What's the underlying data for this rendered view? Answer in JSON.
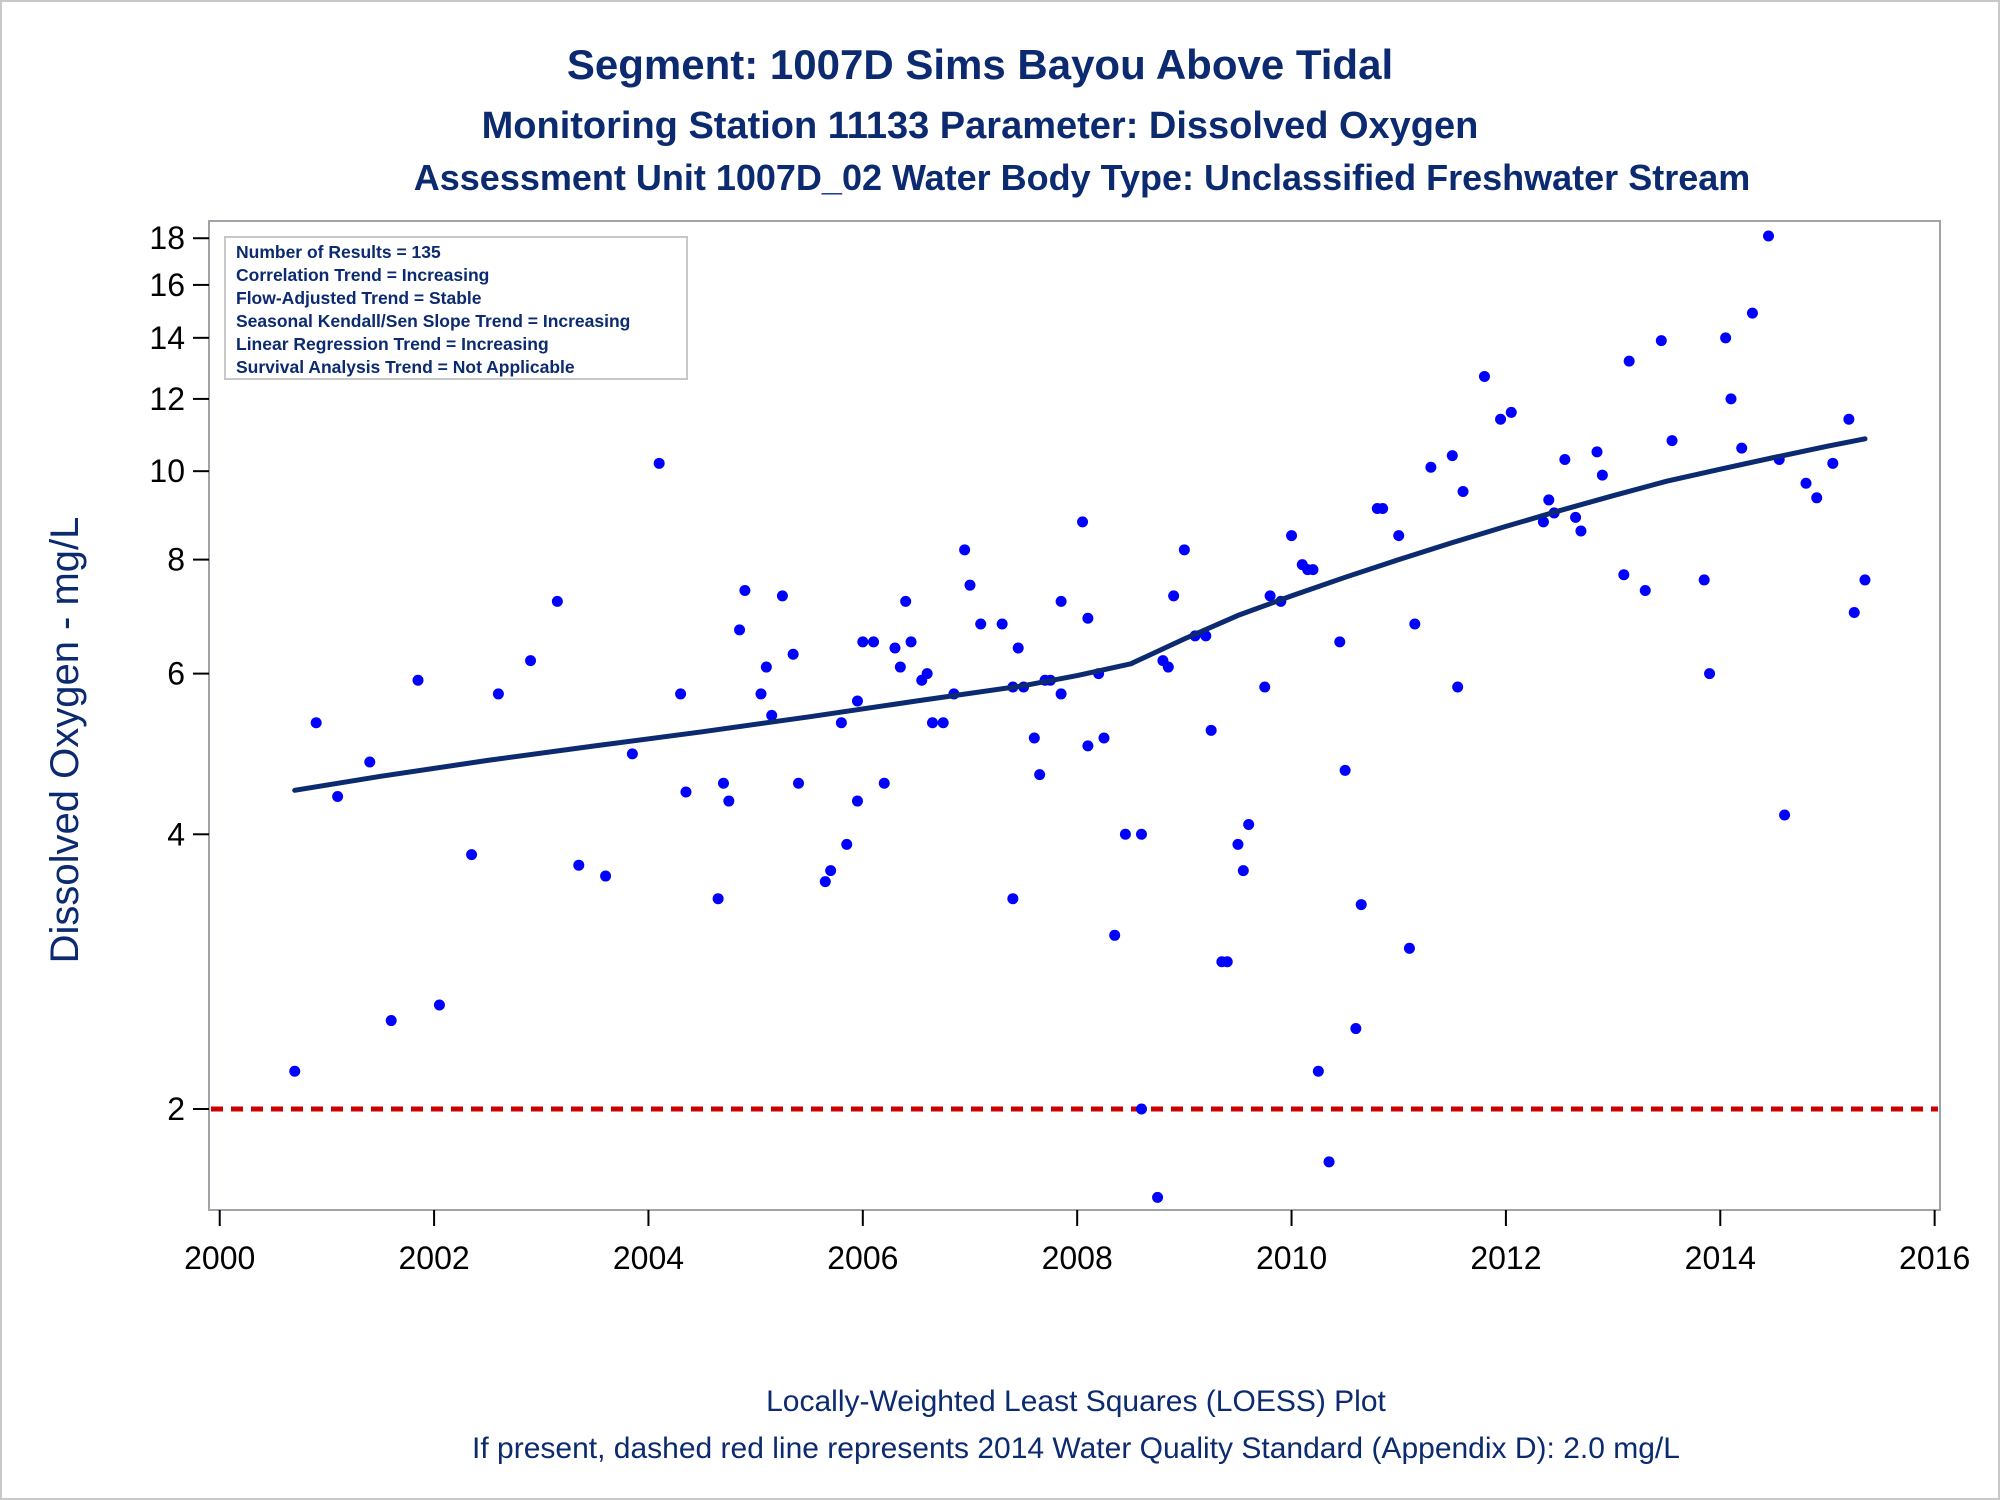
{
  "titles": {
    "line1": "Segment: 1007D  Sims Bayou Above Tidal",
    "line2": "Monitoring Station 11133 Parameter: Dissolved Oxygen",
    "line3": "Assessment Unit 1007D_02   Water Body Type: Unclassified Freshwater Stream"
  },
  "stats_box": [
    "Number of Results = 135",
    "Correlation Trend = Increasing",
    "Flow-Adjusted Trend = Stable",
    "Seasonal Kendall/Sen Slope Trend = Increasing",
    "Linear Regression Trend = Increasing",
    "Survival Analysis Trend = Not Applicable"
  ],
  "footer": {
    "line1": "Locally-Weighted Least Squares (LOESS) Plot",
    "line2": "If present, dashed red line represents 2014 Water Quality Standard (Appendix D): 2.0 mg/L"
  },
  "chart_data": {
    "type": "scatter",
    "xlabel": "",
    "ylabel": "Dissolved Oxygen - mg/L",
    "yscale": "log",
    "xlim": [
      1999.9,
      2016.05
    ],
    "ylim": [
      1.55,
      18.8
    ],
    "xticks": [
      2000,
      2002,
      2004,
      2006,
      2008,
      2010,
      2012,
      2014,
      2016
    ],
    "yticks": [
      2,
      4,
      6,
      8,
      10,
      12,
      14,
      16,
      18
    ],
    "grid": false,
    "colors": {
      "points": "#0000ff",
      "loess": "#0b2a70",
      "standard": "#cc0000",
      "text": "#0b2a70"
    },
    "standard_line": {
      "y": 2.0,
      "style": "dashed"
    },
    "series": [
      {
        "type": "scatter",
        "x": [
          2000.7,
          2000.9,
          2001.1,
          2001.4,
          2001.6,
          2001.85,
          2002.05,
          2002.35,
          2002.6,
          2002.9,
          2003.15,
          2003.35,
          2003.6,
          2003.85,
          2004.1,
          2004.3,
          2004.35,
          2004.65,
          2004.7,
          2004.75,
          2004.85,
          2004.9,
          2005.05,
          2005.1,
          2005.15,
          2005.25,
          2005.35,
          2005.4,
          2005.65,
          2005.7,
          2005.8,
          2005.85,
          2005.95,
          2005.95,
          2006.0,
          2006.1,
          2006.2,
          2006.3,
          2006.35,
          2006.4,
          2006.45,
          2006.55,
          2006.6,
          2006.65,
          2006.75,
          2006.85,
          2006.95,
          2007.0,
          2007.1,
          2007.3,
          2007.4,
          2007.4,
          2007.45,
          2007.5,
          2007.6,
          2007.65,
          2007.7,
          2007.75,
          2007.85,
          2007.85,
          2008.05,
          2008.1,
          2008.1,
          2008.2,
          2008.25,
          2008.35,
          2008.45,
          2008.6,
          2008.6,
          2008.75,
          2008.8,
          2008.85,
          2008.9,
          2009.0,
          2009.1,
          2009.2,
          2009.25,
          2009.35,
          2009.4,
          2009.5,
          2009.55,
          2009.6,
          2009.75,
          2009.8,
          2009.9,
          2010.0,
          2010.1,
          2010.15,
          2010.2,
          2010.25,
          2010.35,
          2010.45,
          2010.5,
          2010.6,
          2010.65,
          2010.8,
          2010.85,
          2011.0,
          2011.1,
          2011.15,
          2011.3,
          2011.5,
          2011.55,
          2011.6,
          2011.8,
          2011.95,
          2012.05,
          2012.35,
          2012.4,
          2012.45,
          2012.55,
          2012.65,
          2012.7,
          2012.85,
          2012.9,
          2013.1,
          2013.15,
          2013.3,
          2013.45,
          2013.55,
          2013.85,
          2013.9,
          2014.05,
          2014.1,
          2014.2,
          2014.3,
          2014.45,
          2014.55,
          2014.6,
          2014.8,
          2014.9,
          2015.05,
          2015.2,
          2015.25,
          2015.35
        ],
        "y": [
          2.2,
          5.3,
          4.4,
          4.8,
          2.5,
          5.9,
          2.6,
          3.8,
          5.7,
          6.2,
          7.2,
          3.7,
          3.6,
          4.9,
          10.2,
          5.7,
          4.45,
          3.4,
          4.55,
          4.35,
          6.7,
          7.4,
          5.7,
          6.1,
          5.4,
          7.3,
          6.3,
          4.55,
          3.55,
          3.65,
          5.3,
          3.9,
          4.35,
          5.6,
          6.5,
          6.5,
          4.55,
          6.4,
          6.1,
          7.2,
          6.5,
          5.9,
          6.0,
          5.3,
          5.3,
          5.7,
          8.2,
          7.5,
          6.8,
          6.8,
          5.8,
          3.4,
          6.4,
          5.8,
          5.1,
          4.65,
          5.9,
          5.9,
          5.7,
          7.2,
          8.8,
          5.0,
          6.9,
          6.0,
          5.1,
          3.1,
          4.0,
          4.0,
          2.0,
          1.6,
          6.2,
          6.1,
          7.3,
          8.2,
          6.6,
          6.6,
          5.2,
          2.9,
          2.9,
          3.9,
          3.65,
          4.1,
          5.8,
          7.3,
          7.2,
          8.5,
          7.9,
          7.8,
          7.8,
          2.2,
          1.75,
          6.5,
          4.7,
          2.45,
          3.35,
          9.1,
          9.1,
          8.5,
          3.0,
          6.8,
          10.1,
          10.4,
          5.8,
          9.5,
          12.7,
          11.4,
          11.6,
          8.8,
          9.3,
          9.0,
          10.3,
          8.9,
          8.6,
          10.5,
          9.9,
          7.7,
          13.2,
          7.4,
          13.9,
          10.8,
          7.6,
          6.0,
          14.0,
          12.0,
          10.6,
          14.9,
          18.1,
          10.3,
          4.2,
          9.7,
          9.35,
          10.2,
          11.4,
          7.0,
          7.6
        ]
      },
      {
        "type": "line",
        "name": "LOESS",
        "x": [
          2000.7,
          2001.5,
          2002.5,
          2003.5,
          2004.5,
          2005.5,
          2006.5,
          2007.5,
          2008.0,
          2008.5,
          2009.0,
          2009.5,
          2010.0,
          2010.5,
          2011.0,
          2011.5,
          2012.0,
          2012.5,
          2013.0,
          2013.5,
          2014.0,
          2014.5,
          2015.0,
          2015.35
        ],
        "y": [
          4.47,
          4.63,
          4.82,
          5.0,
          5.18,
          5.38,
          5.6,
          5.82,
          5.97,
          6.15,
          6.55,
          6.95,
          7.3,
          7.65,
          8.0,
          8.35,
          8.7,
          9.05,
          9.4,
          9.75,
          10.05,
          10.35,
          10.65,
          10.85
        ]
      }
    ]
  }
}
